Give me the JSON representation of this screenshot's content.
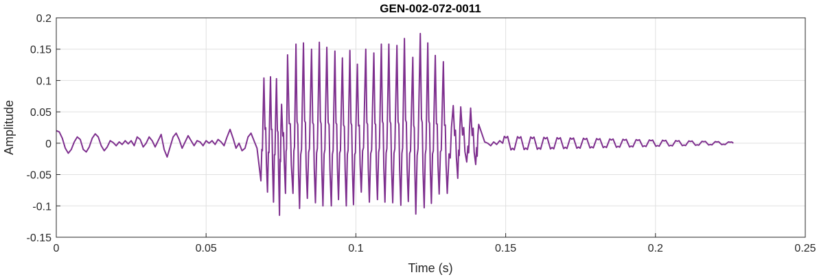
{
  "chart_data": {
    "type": "line",
    "title": "GEN-002-072-0011",
    "xlabel": "Time (s)",
    "ylabel": "Amplitude",
    "xlim": [
      0,
      0.25
    ],
    "ylim": [
      -0.15,
      0.2
    ],
    "grid": true,
    "x_ticks": [
      0,
      0.05,
      0.1,
      0.15,
      0.2,
      0.25
    ],
    "x_tick_labels": [
      "0",
      "0.05",
      "0.1",
      "0.15",
      "0.2",
      "0.25"
    ],
    "y_ticks": [
      -0.15,
      -0.1,
      -0.05,
      0,
      0.05,
      0.1,
      0.15,
      0.2
    ],
    "y_tick_labels": [
      "-0.15",
      "-0.1",
      "-0.05",
      "0",
      "0.05",
      "0.1",
      "0.15",
      "0.2"
    ],
    "series": [
      {
        "color": "#7E2F8E",
        "x_range": [
          0,
          0.226
        ],
        "points": [
          [
            0.0,
            0.02
          ],
          [
            0.001,
            0.018
          ],
          [
            0.002,
            0.008
          ],
          [
            0.003,
            -0.008
          ],
          [
            0.004,
            -0.016
          ],
          [
            0.005,
            -0.01
          ],
          [
            0.006,
            0.002
          ],
          [
            0.007,
            0.01
          ],
          [
            0.008,
            0.006
          ],
          [
            0.009,
            -0.01
          ],
          [
            0.01,
            -0.014
          ],
          [
            0.011,
            -0.006
          ],
          [
            0.012,
            0.008
          ],
          [
            0.013,
            0.015
          ],
          [
            0.014,
            0.01
          ],
          [
            0.015,
            -0.004
          ],
          [
            0.016,
            -0.012
          ],
          [
            0.017,
            -0.006
          ],
          [
            0.018,
            0.004
          ],
          [
            0.019,
            0.001
          ],
          [
            0.02,
            -0.004
          ],
          [
            0.021,
            0.002
          ],
          [
            0.022,
            -0.002
          ],
          [
            0.023,
            0.004
          ],
          [
            0.024,
            -0.001
          ],
          [
            0.025,
            0.004
          ],
          [
            0.026,
            -0.004
          ],
          [
            0.027,
            0.01
          ],
          [
            0.028,
            0.006
          ],
          [
            0.029,
            -0.006
          ],
          [
            0.03,
            0.0
          ],
          [
            0.031,
            0.01
          ],
          [
            0.032,
            0.004
          ],
          [
            0.033,
            -0.006
          ],
          [
            0.034,
            0.004
          ],
          [
            0.035,
            0.014
          ],
          [
            0.036,
            -0.01
          ],
          [
            0.037,
            -0.022
          ],
          [
            0.038,
            -0.006
          ],
          [
            0.039,
            0.01
          ],
          [
            0.04,
            0.016
          ],
          [
            0.041,
            0.006
          ],
          [
            0.042,
            -0.008
          ],
          [
            0.043,
            0.002
          ],
          [
            0.044,
            0.012
          ],
          [
            0.045,
            0.004
          ],
          [
            0.046,
            -0.004
          ],
          [
            0.047,
            0.004
          ],
          [
            0.048,
            0.002
          ],
          [
            0.049,
            -0.004
          ],
          [
            0.05,
            0.004
          ],
          [
            0.051,
            0.0
          ],
          [
            0.052,
            0.004
          ],
          [
            0.053,
            -0.002
          ],
          [
            0.054,
            0.006
          ],
          [
            0.055,
            0.002
          ],
          [
            0.056,
            -0.004
          ],
          [
            0.057,
            0.01
          ],
          [
            0.058,
            0.022
          ],
          [
            0.059,
            0.008
          ],
          [
            0.06,
            -0.008
          ],
          [
            0.061,
            0.0
          ],
          [
            0.062,
            -0.012
          ],
          [
            0.063,
            -0.008
          ],
          [
            0.064,
            0.01
          ],
          [
            0.065,
            0.016
          ],
          [
            0.066,
            0.004
          ],
          [
            0.067,
            -0.008
          ],
          [
            0.068,
            -0.004
          ],
          [
            0.069,
            0.02
          ],
          [
            0.07,
            0.008
          ],
          [
            0.071,
            -0.012
          ],
          [
            0.072,
            0.004
          ],
          [
            0.073,
            -0.008
          ],
          [
            0.074,
            0.006
          ],
          [
            0.075,
            0.002
          ],
          [
            0.076,
            -0.006
          ],
          [
            0.077,
            0.01
          ],
          [
            0.078,
            0.002
          ],
          [
            0.079,
            -0.006
          ],
          [
            0.08,
            0.012
          ],
          [
            0.081,
            0.018
          ],
          [
            0.082,
            -0.01
          ],
          [
            0.083,
            -0.024
          ],
          [
            0.084,
            -0.014
          ],
          [
            0.085,
            0.008
          ],
          [
            0.086,
            0.022
          ],
          [
            0.087,
            0.012
          ],
          [
            0.088,
            -0.01
          ],
          [
            0.089,
            -0.01
          ],
          [
            0.09,
            0.006
          ],
          [
            0.091,
            -0.004
          ],
          [
            0.092,
            0.004
          ],
          [
            0.093,
            0.002
          ],
          [
            0.094,
            -0.002
          ],
          [
            0.095,
            0.004
          ],
          [
            0.096,
            0.006
          ],
          [
            0.097,
            -0.002
          ],
          [
            0.098,
            0.0
          ],
          [
            0.099,
            0.004
          ],
          [
            0.1,
            -0.002
          ],
          [
            0.101,
            0.004
          ],
          [
            0.102,
            -0.04
          ],
          [
            0.103,
            -0.004
          ],
          [
            0.104,
            0.006
          ],
          [
            0.105,
            -0.012
          ],
          [
            0.106,
            0.01
          ],
          [
            0.107,
            0.026
          ],
          [
            0.108,
            0.008
          ],
          [
            0.109,
            -0.008
          ],
          [
            0.11,
            0.012
          ],
          [
            0.111,
            0.018
          ],
          [
            0.112,
            0.006
          ],
          [
            0.113,
            0.022
          ],
          [
            0.114,
            0.004
          ],
          [
            0.115,
            -0.01
          ],
          [
            0.116,
            0.006
          ],
          [
            0.117,
            0.0
          ],
          [
            0.118,
            -0.004
          ],
          [
            0.119,
            0.01
          ],
          [
            0.12,
            0.006
          ],
          [
            0.121,
            -0.002
          ],
          [
            0.122,
            0.006
          ],
          [
            0.123,
            -0.01
          ],
          [
            0.124,
            0.004
          ],
          [
            0.125,
            -0.028
          ],
          [
            0.126,
            -0.014
          ],
          [
            0.127,
            0.006
          ],
          [
            0.128,
            0.018
          ],
          [
            0.129,
            0.028
          ],
          [
            0.13,
            -0.004
          ],
          [
            0.131,
            0.004
          ],
          [
            0.132,
            0.018
          ],
          [
            0.133,
            0.006
          ],
          [
            0.134,
            -0.012
          ],
          [
            0.135,
            0.01
          ],
          [
            0.136,
            0.024
          ],
          [
            0.137,
            0.006
          ],
          [
            0.138,
            -0.02
          ],
          [
            0.139,
            -0.006
          ],
          [
            0.14,
            0.01
          ],
          [
            0.141,
            0.008
          ],
          [
            0.142,
            -0.004
          ],
          [
            0.143,
            0.002
          ],
          [
            0.144,
            0.0
          ],
          [
            0.145,
            -0.004
          ],
          [
            0.146,
            0.002
          ],
          [
            0.147,
            -0.002
          ],
          [
            0.148,
            0.004
          ],
          [
            0.149,
            -0.002
          ]
        ],
        "envelope": {
          "onset": 0.068,
          "offset": 0.142,
          "peak_max": 0.176,
          "trough_min": -0.115,
          "cycle_peaks": [
            [
              0.0693,
              0.104
            ],
            [
              0.0715,
              0.106
            ],
            [
              0.0735,
              0.103
            ],
            [
              0.0752,
              0.062
            ],
            [
              0.0772,
              0.141
            ],
            [
              0.08,
              0.158
            ],
            [
              0.0825,
              0.16
            ],
            [
              0.0852,
              0.15
            ],
            [
              0.0878,
              0.161
            ],
            [
              0.0903,
              0.153
            ],
            [
              0.093,
              0.147
            ],
            [
              0.0955,
              0.136
            ],
            [
              0.098,
              0.148
            ],
            [
              0.1005,
              0.126
            ],
            [
              0.1033,
              0.15
            ],
            [
              0.106,
              0.144
            ],
            [
              0.1085,
              0.158
            ],
            [
              0.111,
              0.158
            ],
            [
              0.1137,
              0.156
            ],
            [
              0.1162,
              0.167
            ],
            [
              0.119,
              0.137
            ],
            [
              0.1215,
              0.175
            ],
            [
              0.124,
              0.16
            ],
            [
              0.1265,
              0.14
            ],
            [
              0.1292,
              0.13
            ],
            [
              0.1325,
              0.06
            ],
            [
              0.135,
              0.058
            ],
            [
              0.1383,
              0.056
            ],
            [
              0.141,
              0.03
            ]
          ],
          "cycle_troughs": [
            [
              0.0683,
              -0.06
            ],
            [
              0.0705,
              -0.078
            ],
            [
              0.0725,
              -0.094
            ],
            [
              0.0745,
              -0.115
            ],
            [
              0.0765,
              -0.08
            ],
            [
              0.079,
              -0.08
            ],
            [
              0.0812,
              -0.104
            ],
            [
              0.0838,
              -0.088
            ],
            [
              0.0865,
              -0.095
            ],
            [
              0.089,
              -0.1
            ],
            [
              0.0918,
              -0.1
            ],
            [
              0.0942,
              -0.09
            ],
            [
              0.0968,
              -0.1
            ],
            [
              0.0992,
              -0.098
            ],
            [
              0.1018,
              -0.078
            ],
            [
              0.1045,
              -0.094
            ],
            [
              0.1072,
              -0.09
            ],
            [
              0.1097,
              -0.094
            ],
            [
              0.1123,
              -0.095
            ],
            [
              0.115,
              -0.099
            ],
            [
              0.1175,
              -0.093
            ],
            [
              0.12,
              -0.113
            ],
            [
              0.1228,
              -0.103
            ],
            [
              0.1252,
              -0.096
            ],
            [
              0.1278,
              -0.081
            ],
            [
              0.1305,
              -0.08
            ],
            [
              0.134,
              -0.056
            ],
            [
              0.137,
              -0.03
            ],
            [
              0.14,
              -0.034
            ]
          ]
        },
        "tail": {
          "start": 0.149,
          "end": 0.226,
          "amplitude_start": 0.012,
          "amplitude_end": 0.002
        }
      }
    ]
  }
}
